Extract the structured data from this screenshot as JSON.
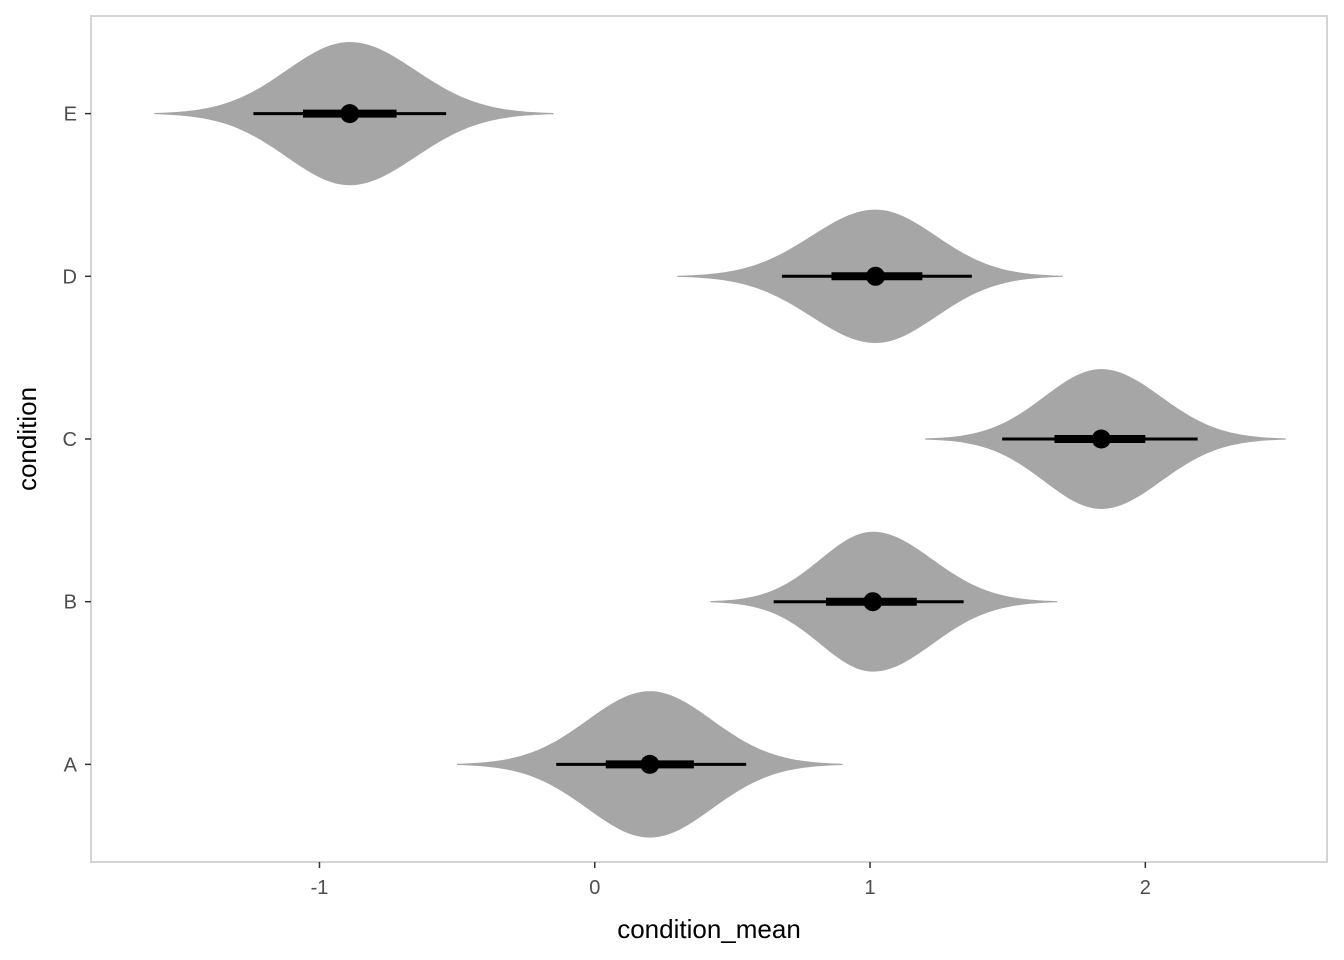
{
  "chart_data": {
    "type": "violin",
    "xlabel": "condition_mean",
    "ylabel": "condition",
    "xlim": [
      -1.83,
      2.66
    ],
    "x_ticks": [
      -1,
      0,
      1,
      2
    ],
    "categories": [
      "A",
      "B",
      "C",
      "D",
      "E"
    ],
    "grid": false,
    "legend": "none",
    "colors": {
      "violin_fill": "#a6a6a6",
      "interval": "#000000",
      "point": "#000000",
      "panel_border": "#d4d4d4"
    },
    "series": [
      {
        "category": "A",
        "point": 0.2,
        "interval_66": [
          0.04,
          0.36
        ],
        "interval_95": [
          -0.14,
          0.55
        ],
        "range": [
          -0.5,
          0.9
        ],
        "half_width": 0.45
      },
      {
        "category": "B",
        "point": 1.01,
        "interval_66": [
          0.84,
          1.17
        ],
        "interval_95": [
          0.65,
          1.34
        ],
        "range": [
          0.42,
          1.68
        ],
        "half_width": 0.43
      },
      {
        "category": "C",
        "point": 1.84,
        "interval_66": [
          1.67,
          2.0
        ],
        "interval_95": [
          1.48,
          2.19
        ],
        "range": [
          1.2,
          2.51
        ],
        "half_width": 0.43
      },
      {
        "category": "D",
        "point": 1.02,
        "interval_66": [
          0.86,
          1.19
        ],
        "interval_95": [
          0.68,
          1.37
        ],
        "range": [
          0.3,
          1.7
        ],
        "half_width": 0.41
      },
      {
        "category": "E",
        "point": -0.89,
        "interval_66": [
          -1.06,
          -0.72
        ],
        "interval_95": [
          -1.24,
          -0.54
        ],
        "range": [
          -1.6,
          -0.15
        ],
        "half_width": 0.44
      }
    ]
  }
}
